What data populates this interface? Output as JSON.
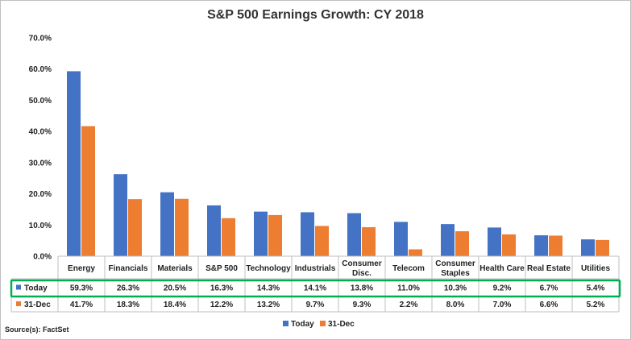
{
  "chart_data": {
    "type": "bar",
    "title": "S&P 500 Earnings Growth: CY 2018",
    "categories": [
      [
        "Energy"
      ],
      [
        "Financials"
      ],
      [
        "Materials"
      ],
      [
        "S&P 500"
      ],
      [
        "Technology"
      ],
      [
        "Industrials"
      ],
      [
        "Consumer",
        "Disc."
      ],
      [
        "Telecom"
      ],
      [
        "Consumer",
        "Staples"
      ],
      [
        "Health Care"
      ],
      [
        "Real Estate"
      ],
      [
        "Utilities"
      ]
    ],
    "series": [
      {
        "name": "Today",
        "color": "#4472C4",
        "values": [
          59.3,
          26.3,
          20.5,
          16.3,
          14.3,
          14.1,
          13.8,
          11.0,
          10.3,
          9.2,
          6.7,
          5.4
        ],
        "labels": [
          "59.3%",
          "26.3%",
          "20.5%",
          "16.3%",
          "14.3%",
          "14.1%",
          "13.8%",
          "11.0%",
          "10.3%",
          "9.2%",
          "6.7%",
          "5.4%"
        ]
      },
      {
        "name": "31-Dec",
        "color": "#ED7D31",
        "values": [
          41.7,
          18.3,
          18.4,
          12.2,
          13.2,
          9.7,
          9.3,
          2.2,
          8.0,
          7.0,
          6.6,
          5.2
        ],
        "labels": [
          "41.7%",
          "18.3%",
          "18.4%",
          "12.2%",
          "13.2%",
          "9.7%",
          "9.3%",
          "2.2%",
          "8.0%",
          "7.0%",
          "6.6%",
          "5.2%"
        ]
      }
    ],
    "ylim": [
      0,
      70
    ],
    "yticks": [
      "0.0%",
      "10.0%",
      "20.0%",
      "30.0%",
      "40.0%",
      "50.0%",
      "60.0%",
      "70.0%"
    ],
    "grid": false,
    "legend": "bottom-center",
    "highlight_row": "Today",
    "highlight_color": "#00B050"
  },
  "source": "Source(s): FactSet"
}
